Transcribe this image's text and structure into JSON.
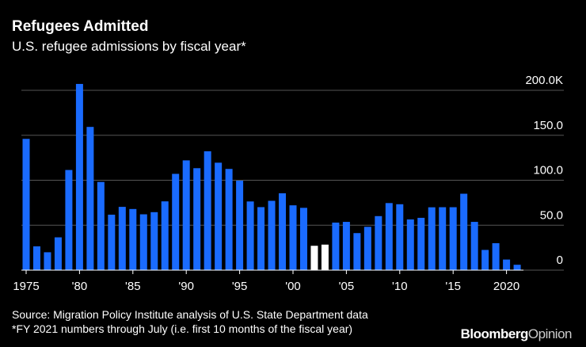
{
  "chart_data": {
    "type": "bar",
    "title": "Refugees Admitted",
    "subtitle": "U.S. refugee admissions by fiscal year*",
    "source": "Source: Migration Policy Institute analysis of U.S. State Department data",
    "note": "*FY 2021 numbers through July (i.e. first 10 months of the fiscal year)",
    "brand": "Bloomberg",
    "brand_suffix": "Opinion",
    "categories": [
      "1975",
      null,
      null,
      null,
      null,
      "'80",
      null,
      null,
      null,
      null,
      "'85",
      null,
      null,
      null,
      null,
      "'90",
      null,
      null,
      null,
      null,
      "'95",
      null,
      null,
      null,
      null,
      "'00",
      null,
      null,
      null,
      null,
      "'05",
      null,
      null,
      null,
      null,
      "'10",
      null,
      null,
      null,
      null,
      "'15",
      null,
      null,
      null,
      null,
      "2020",
      null
    ],
    "values": [
      146,
      26.5,
      19.9,
      36.5,
      111.4,
      207.1,
      159.3,
      98.1,
      61.7,
      70.4,
      68,
      62.1,
      64.5,
      76.5,
      107.1,
      122.1,
      113.4,
      132.2,
      119.5,
      112.6,
      99.5,
      76.4,
      70.1,
      77.1,
      85.5,
      72.1,
      69.3,
      27.1,
      28.4,
      52.9,
      53.7,
      41.2,
      48.2,
      60.1,
      74.6,
      73.3,
      56.4,
      58.2,
      69.9,
      70,
      70,
      85,
      53.7,
      22.5,
      30,
      11.8,
      6
    ],
    "colors": [
      "#1a6bff",
      "#1a6bff",
      "#1a6bff",
      "#1a6bff",
      "#1a6bff",
      "#1a6bff",
      "#1a6bff",
      "#1a6bff",
      "#1a6bff",
      "#1a6bff",
      "#1a6bff",
      "#1a6bff",
      "#1a6bff",
      "#1a6bff",
      "#1a6bff",
      "#1a6bff",
      "#1a6bff",
      "#1a6bff",
      "#1a6bff",
      "#1a6bff",
      "#1a6bff",
      "#1a6bff",
      "#1a6bff",
      "#1a6bff",
      "#1a6bff",
      "#1a6bff",
      "#1a6bff",
      "#ffffff",
      "#ffffff",
      "#1a6bff",
      "#1a6bff",
      "#1a6bff",
      "#1a6bff",
      "#1a6bff",
      "#1a6bff",
      "#1a6bff",
      "#1a6bff",
      "#1a6bff",
      "#1a6bff",
      "#1a6bff",
      "#1a6bff",
      "#1a6bff",
      "#1a6bff",
      "#1a6bff",
      "#1a6bff",
      "#1a6bff",
      "#1a6bff"
    ],
    "ylim": [
      0,
      200
    ],
    "yticks": [
      0,
      {
        "value": 50,
        "label": "50.0"
      },
      {
        "value": 100,
        "label": "100.0"
      },
      {
        "value": 150,
        "label": "150.0"
      },
      {
        "value": 200,
        "label": "200.0K"
      }
    ],
    "grid": true
  }
}
